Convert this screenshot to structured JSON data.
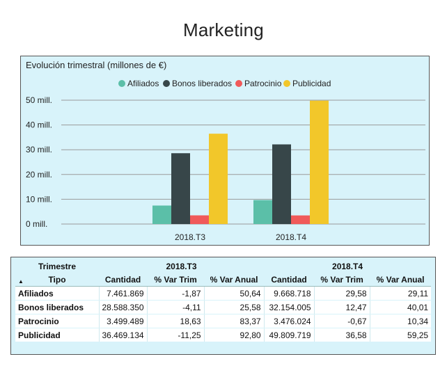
{
  "page": {
    "title": "Marketing"
  },
  "chart_data": {
    "type": "bar",
    "title": "Evolución trimestral (millones de €)",
    "categories": [
      "2018.T3",
      "2018.T4"
    ],
    "series": [
      {
        "name": "Afiliados",
        "color": "#5bbfa8",
        "values": [
          7.461869,
          9.668718
        ]
      },
      {
        "name": "Bonos liberados",
        "color": "#374649",
        "values": [
          28.58835,
          32.154005
        ]
      },
      {
        "name": "Patrocinio",
        "color": "#f05a5a",
        "values": [
          3.499489,
          3.476024
        ]
      },
      {
        "name": "Publicidad",
        "color": "#f2c72a",
        "values": [
          36.469134,
          49.809719
        ]
      }
    ],
    "yticks": [
      "0 mill.",
      "10 mill.",
      "20 mill.",
      "30 mill.",
      "40 mill.",
      "50 mill."
    ],
    "ylim": [
      0,
      50
    ],
    "grid": true,
    "legend": "top"
  },
  "table": {
    "row_header": "Trimestre",
    "col_header": "Tipo",
    "periods": [
      "2018.T3",
      "2018.T4"
    ],
    "columns": [
      "Cantidad",
      "% Var Trim",
      "% Var Anual",
      "Cantidad",
      "% Var Trim",
      "% Var Anual"
    ],
    "rows": [
      {
        "tipo": "Afiliados",
        "values": [
          "7.461.869",
          "-1,87",
          "50,64",
          "9.668.718",
          "29,58",
          "29,11"
        ]
      },
      {
        "tipo": "Bonos liberados",
        "values": [
          "28.588.350",
          "-4,11",
          "25,58",
          "32.154.005",
          "12,47",
          "40,01"
        ]
      },
      {
        "tipo": "Patrocinio",
        "values": [
          "3.499.489",
          "18,63",
          "83,37",
          "3.476.024",
          "-0,67",
          "10,34"
        ]
      },
      {
        "tipo": "Publicidad",
        "values": [
          "36.469.134",
          "-11,25",
          "92,80",
          "49.809.719",
          "36,58",
          "59,25"
        ]
      }
    ],
    "sort_icon": "sort-ascending-icon"
  }
}
